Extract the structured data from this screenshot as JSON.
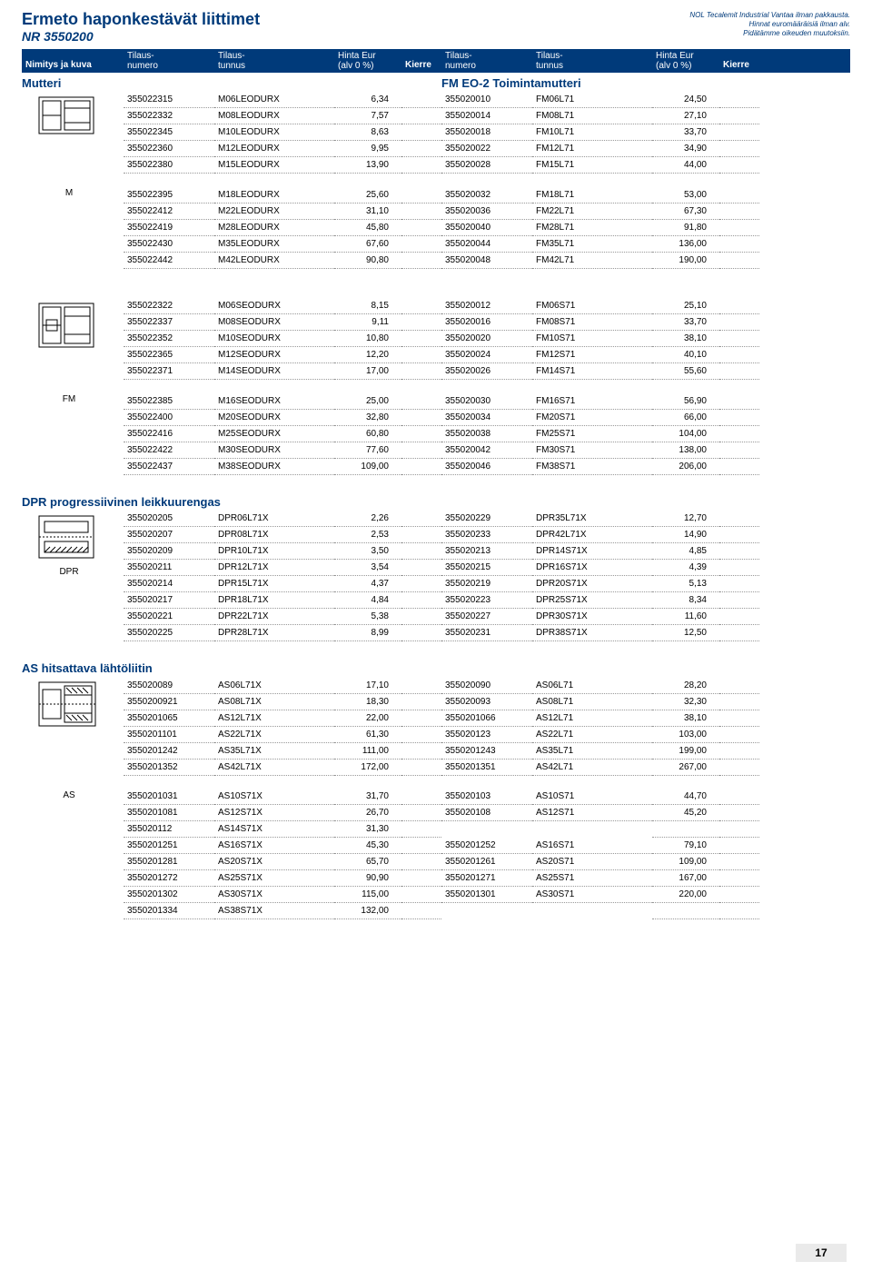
{
  "header": {
    "title_main": "Ermeto haponkestävät liittimet",
    "title_sub": "NR 3550200",
    "disclaimer_line1": "NOL Tecalemit Industrial Vantaa ilman pakkausta.",
    "disclaimer_line2": "Hinnat euromääräisiä ilman alv.",
    "disclaimer_line3": "Pidätämme oikeuden muutoksiin."
  },
  "columns": {
    "nimitys": "Nimitys ja kuva",
    "tilaus_numero_pre": "Tilaus-",
    "tilaus_numero": "numero",
    "tilaus_tunnus_pre": "Tilaus-",
    "tilaus_tunnus": "tunnus",
    "hinta_pre": "Hinta Eur",
    "hinta": "(alv 0 %)",
    "kierre": "Kierre"
  },
  "page_number": "17",
  "sections": [
    {
      "left_title": "Mutteri",
      "right_title": "FM EO-2 Toimintamutteri",
      "image_caption": "M",
      "svg": "nut1",
      "blocks": [
        {
          "left": [
            [
              "355022315",
              "M06LEODURX",
              "6,34",
              ""
            ],
            [
              "355022332",
              "M08LEODURX",
              "7,57",
              ""
            ],
            [
              "355022345",
              "M10LEODURX",
              "8,63",
              ""
            ],
            [
              "355022360",
              "M12LEODURX",
              "9,95",
              ""
            ],
            [
              "355022380",
              "M15LEODURX",
              "13,90",
              ""
            ]
          ],
          "right": [
            [
              "355020010",
              "FM06L71",
              "24,50",
              ""
            ],
            [
              "355020014",
              "FM08L71",
              "27,10",
              ""
            ],
            [
              "355020018",
              "FM10L71",
              "33,70",
              ""
            ],
            [
              "355020022",
              "FM12L71",
              "34,90",
              ""
            ],
            [
              "355020028",
              "FM15L71",
              "44,00",
              ""
            ]
          ]
        },
        {
          "left": [
            [
              "355022395",
              "M18LEODURX",
              "25,60",
              ""
            ],
            [
              "355022412",
              "M22LEODURX",
              "31,10",
              ""
            ],
            [
              "355022419",
              "M28LEODURX",
              "45,80",
              ""
            ],
            [
              "355022430",
              "M35LEODURX",
              "67,60",
              ""
            ],
            [
              "355022442",
              "M42LEODURX",
              "90,80",
              ""
            ]
          ],
          "right": [
            [
              "355020032",
              "FM18L71",
              "53,00",
              ""
            ],
            [
              "355020036",
              "FM22L71",
              "67,30",
              ""
            ],
            [
              "355020040",
              "FM28L71",
              "91,80",
              ""
            ],
            [
              "355020044",
              "FM35L71",
              "136,00",
              ""
            ],
            [
              "355020048",
              "FM42L71",
              "190,00",
              ""
            ]
          ]
        }
      ]
    },
    {
      "left_title": "",
      "right_title": "",
      "image_caption": "FM",
      "svg": "nut2",
      "blocks": [
        {
          "left": [
            [
              "355022322",
              "M06SEODURX",
              "8,15",
              ""
            ],
            [
              "355022337",
              "M08SEODURX",
              "9,11",
              ""
            ],
            [
              "355022352",
              "M10SEODURX",
              "10,80",
              ""
            ],
            [
              "355022365",
              "M12SEODURX",
              "12,20",
              ""
            ],
            [
              "355022371",
              "M14SEODURX",
              "17,00",
              ""
            ]
          ],
          "right": [
            [
              "355020012",
              "FM06S71",
              "25,10",
              ""
            ],
            [
              "355020016",
              "FM08S71",
              "33,70",
              ""
            ],
            [
              "355020020",
              "FM10S71",
              "38,10",
              ""
            ],
            [
              "355020024",
              "FM12S71",
              "40,10",
              ""
            ],
            [
              "355020026",
              "FM14S71",
              "55,60",
              ""
            ]
          ]
        },
        {
          "left": [
            [
              "355022385",
              "M16SEODURX",
              "25,00",
              ""
            ],
            [
              "355022400",
              "M20SEODURX",
              "32,80",
              ""
            ],
            [
              "355022416",
              "M25SEODURX",
              "60,80",
              ""
            ],
            [
              "355022422",
              "M30SEODURX",
              "77,60",
              ""
            ],
            [
              "355022437",
              "M38SEODURX",
              "109,00",
              ""
            ]
          ],
          "right": [
            [
              "355020030",
              "FM16S71",
              "56,90",
              ""
            ],
            [
              "355020034",
              "FM20S71",
              "66,00",
              ""
            ],
            [
              "355020038",
              "FM25S71",
              "104,00",
              ""
            ],
            [
              "355020042",
              "FM30S71",
              "138,00",
              ""
            ],
            [
              "355020046",
              "FM38S71",
              "206,00",
              ""
            ]
          ]
        }
      ]
    },
    {
      "left_title": "DPR progressiivinen leikkuurengas",
      "right_title": "",
      "image_caption": "DPR",
      "svg": "dpr",
      "blocks": [
        {
          "left": [
            [
              "355020205",
              "DPR06L71X",
              "2,26",
              ""
            ],
            [
              "355020207",
              "DPR08L71X",
              "2,53",
              ""
            ],
            [
              "355020209",
              "DPR10L71X",
              "3,50",
              ""
            ],
            [
              "355020211",
              "DPR12L71X",
              "3,54",
              ""
            ],
            [
              "355020214",
              "DPR15L71X",
              "4,37",
              ""
            ],
            [
              "355020217",
              "DPR18L71X",
              "4,84",
              ""
            ],
            [
              "355020221",
              "DPR22L71X",
              "5,38",
              ""
            ],
            [
              "355020225",
              "DPR28L71X",
              "8,99",
              ""
            ]
          ],
          "right": [
            [
              "355020229",
              "DPR35L71X",
              "12,70",
              ""
            ],
            [
              "355020233",
              "DPR42L71X",
              "14,90",
              ""
            ],
            [
              "355020213",
              "DPR14S71X",
              "4,85",
              ""
            ],
            [
              "355020215",
              "DPR16S71X",
              "4,39",
              ""
            ],
            [
              "355020219",
              "DPR20S71X",
              "5,13",
              ""
            ],
            [
              "355020223",
              "DPR25S71X",
              "8,34",
              ""
            ],
            [
              "355020227",
              "DPR30S71X",
              "11,60",
              ""
            ],
            [
              "355020231",
              "DPR38S71X",
              "12,50",
              ""
            ]
          ]
        }
      ]
    },
    {
      "left_title": "AS hitsattava lähtöliitin",
      "right_title": "",
      "image_caption": "AS",
      "svg": "as",
      "blocks": [
        {
          "left": [
            [
              "355020089",
              "AS06L71X",
              "17,10",
              ""
            ],
            [
              "3550200921",
              "AS08L71X",
              "18,30",
              ""
            ],
            [
              "3550201065",
              "AS12L71X",
              "22,00",
              ""
            ],
            [
              "3550201101",
              "AS22L71X",
              "61,30",
              ""
            ],
            [
              "3550201242",
              "AS35L71X",
              "111,00",
              ""
            ],
            [
              "3550201352",
              "AS42L71X",
              "172,00",
              ""
            ]
          ],
          "right": [
            [
              "355020090",
              "AS06L71",
              "28,20",
              ""
            ],
            [
              "355020093",
              "AS08L71",
              "32,30",
              ""
            ],
            [
              "3550201066",
              "AS12L71",
              "38,10",
              ""
            ],
            [
              "355020123",
              "AS22L71",
              "103,00",
              ""
            ],
            [
              "3550201243",
              "AS35L71",
              "199,00",
              ""
            ],
            [
              "3550201351",
              "AS42L71",
              "267,00",
              ""
            ]
          ]
        },
        {
          "left": [
            [
              "3550201031",
              "AS10S71X",
              "31,70",
              ""
            ],
            [
              "3550201081",
              "AS12S71X",
              "26,70",
              ""
            ],
            [
              "355020112",
              "AS14S71X",
              "31,30",
              ""
            ],
            [
              "3550201251",
              "AS16S71X",
              "45,30",
              ""
            ],
            [
              "3550201281",
              "AS20S71X",
              "65,70",
              ""
            ],
            [
              "3550201272",
              "AS25S71X",
              "90,90",
              ""
            ],
            [
              "3550201302",
              "AS30S71X",
              "115,00",
              ""
            ],
            [
              "3550201334",
              "AS38S71X",
              "132,00",
              ""
            ]
          ],
          "right": [
            [
              "355020103",
              "AS10S71",
              "44,70",
              ""
            ],
            [
              "355020108",
              "AS12S71",
              "45,20",
              ""
            ],
            [
              "",
              "",
              "",
              ""
            ],
            [
              "3550201252",
              "AS16S71",
              "79,10",
              ""
            ],
            [
              "3550201261",
              "AS20S71",
              "109,00",
              ""
            ],
            [
              "3550201271",
              "AS25S71",
              "167,00",
              ""
            ],
            [
              "3550201301",
              "AS30S71",
              "220,00",
              ""
            ],
            [
              "",
              "",
              "",
              ""
            ]
          ]
        }
      ]
    }
  ]
}
